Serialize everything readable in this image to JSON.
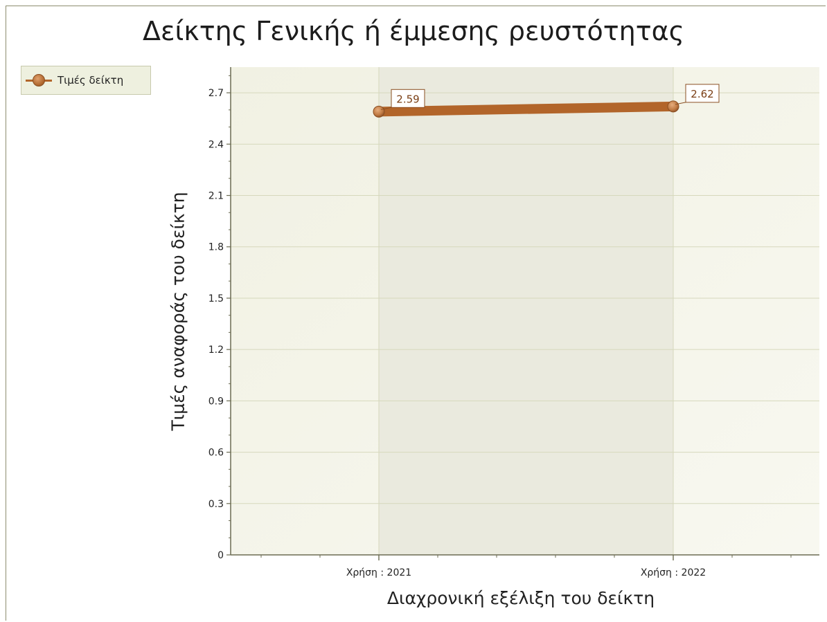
{
  "chart_data": {
    "type": "line",
    "title": "Δείκτης Γενικής ή έμμεσης ρευστότητας",
    "xlabel": "Διαχρονική εξέλιξη του δείκτη",
    "ylabel": "Τιμές αναφοράς του δείκτη",
    "categories": [
      "Χρήση : 2021",
      "Χρήση : 2022"
    ],
    "series": [
      {
        "name": "Τιμές δείκτη",
        "values": [
          2.59,
          2.62
        ],
        "labels": [
          "2.59",
          "2.62"
        ]
      }
    ],
    "ylim": [
      0,
      2.85
    ],
    "yticks": [
      0,
      0.3,
      0.6,
      0.9,
      1.2,
      1.5,
      1.8,
      2.1,
      2.4,
      2.7
    ],
    "ytick_labels": [
      "0",
      "0.3",
      "0.6",
      "0.9",
      "1.2",
      "1.5",
      "1.8",
      "2.1",
      "2.4",
      "2.7"
    ],
    "grid": true,
    "legend_position": "top-left",
    "colors": {
      "line": "#b2652a",
      "marker": "#c8824a",
      "plot_background": "#f4f4e9",
      "band": "#eaeade",
      "grid": "#d6d8bc",
      "axis": "#6b6b52",
      "label_border": "#8a4f22"
    }
  }
}
